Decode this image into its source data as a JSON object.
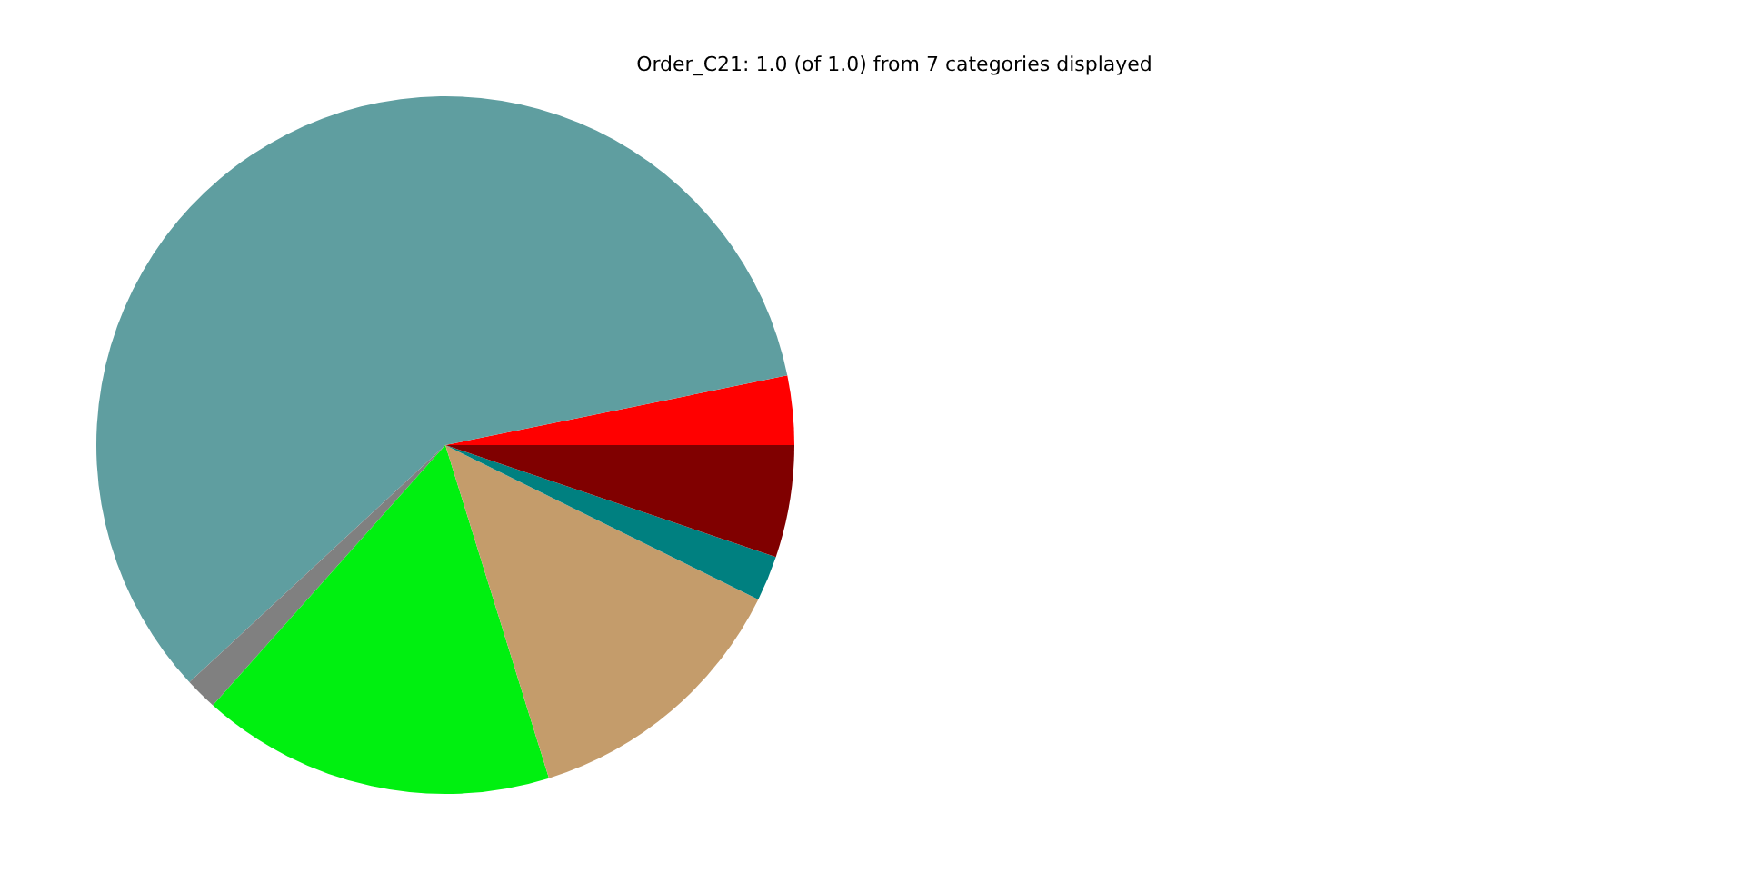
{
  "chart_data": {
    "type": "pie",
    "title": "Order_C21: 1.0 (of 1.0) from 7 categories displayed",
    "categories": [
      null,
      null,
      null,
      null,
      null,
      null,
      null
    ],
    "values": [
      3.2,
      58.7,
      1.5,
      16.4,
      12.9,
      2.1,
      5.2
    ],
    "colors": [
      "#ff0000",
      "#5f9ea0",
      "#808080",
      "#00f010",
      "#c49c6b",
      "#008080",
      "#800000"
    ],
    "legend": false
  }
}
